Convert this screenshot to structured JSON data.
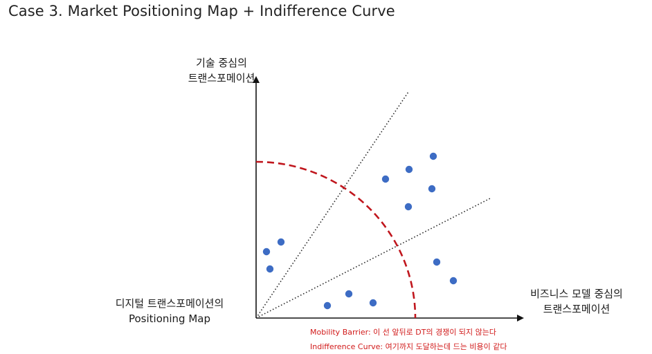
{
  "title": "Case 3. Market Positioning Map + Indifference Curve",
  "axes": {
    "y_label_line1": "기술 중심의",
    "y_label_line2": "트랜스포메이션",
    "x_label_line1": "비즈니스 모델 중심의",
    "x_label_line2": "트랜스포메이션"
  },
  "map_label": {
    "line1": "디지털 트랜스포메이션의",
    "line2": "Positioning Map"
  },
  "notes": {
    "mobility_barrier": "Mobility Barrier: 이 선 앞뒤로 DT의 경쟁이 되지 않는다",
    "indifference_curve": "Indifference Curve: 여기까지 도달하는데 드는 비용이 같다"
  },
  "colors": {
    "axis": "#111111",
    "curve": "#c0161d",
    "dots": "#3d6cc4",
    "note_text": "#d11a1a"
  }
}
